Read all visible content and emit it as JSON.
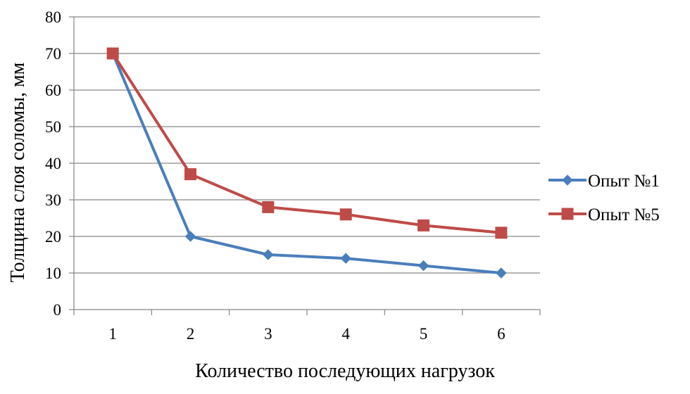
{
  "chart_data": {
    "type": "line",
    "title": "",
    "xlabel": "Количество последующих нагрузок",
    "ylabel": "Толщина слоя соломы, мм",
    "categories": [
      "1",
      "2",
      "3",
      "4",
      "5",
      "6"
    ],
    "ylim": [
      0,
      80
    ],
    "yticks": [
      0,
      10,
      20,
      30,
      40,
      50,
      60,
      70,
      80
    ],
    "grid": true,
    "legend_position": "right",
    "series": [
      {
        "name": "Опыт №1",
        "values": [
          70,
          20,
          15,
          14,
          12,
          10
        ],
        "color": "#4a7ebb",
        "marker": "diamond"
      },
      {
        "name": "Опыт №5",
        "values": [
          70,
          37,
          28,
          26,
          23,
          21
        ],
        "color": "#be4b48",
        "marker": "square"
      }
    ]
  }
}
